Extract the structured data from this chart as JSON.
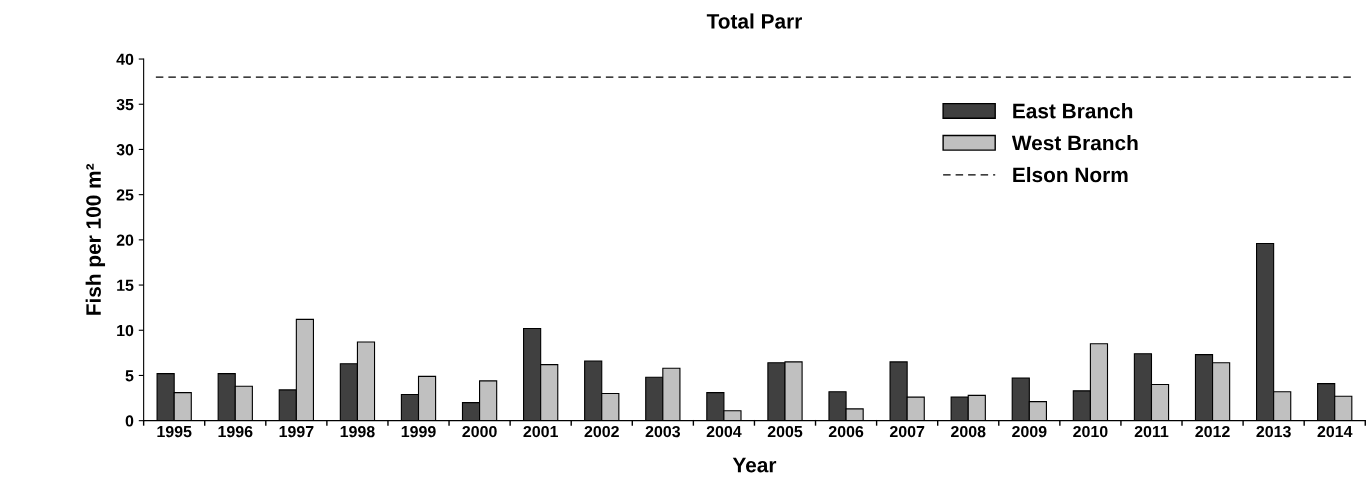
{
  "chart_data": {
    "type": "bar",
    "title": "Total Parr",
    "xlabel": "Year",
    "ylabel": "Fish per 100 m²",
    "categories": [
      "1995",
      "1996",
      "1997",
      "1998",
      "1999",
      "2000",
      "2001",
      "2002",
      "2003",
      "2004",
      "2005",
      "2006",
      "2007",
      "2008",
      "2009",
      "2010",
      "2011",
      "2012",
      "2013",
      "2014"
    ],
    "series": [
      {
        "name": "East Branch",
        "color": "#404040",
        "values": [
          5.2,
          5.2,
          3.4,
          6.3,
          2.9,
          2.0,
          10.2,
          6.6,
          4.8,
          3.1,
          6.4,
          3.2,
          6.5,
          2.6,
          4.7,
          3.3,
          7.4,
          7.3,
          19.6,
          4.1
        ]
      },
      {
        "name": "West Branch",
        "color": "#c0c0c0",
        "values": [
          3.1,
          3.8,
          11.2,
          8.7,
          4.9,
          4.4,
          6.2,
          3.0,
          5.8,
          1.1,
          6.5,
          1.3,
          2.6,
          2.8,
          2.1,
          8.5,
          4.0,
          6.4,
          3.2,
          2.7
        ]
      }
    ],
    "ref_lines": [
      {
        "axis": "y",
        "value": 38,
        "label": "Elson Norm",
        "color": "#000000",
        "line_style": "dashed"
      }
    ],
    "ylim": [
      0,
      40
    ],
    "yticks": [
      0,
      5,
      10,
      15,
      20,
      25,
      30,
      35,
      40
    ],
    "grid": false,
    "legend": "top right"
  }
}
